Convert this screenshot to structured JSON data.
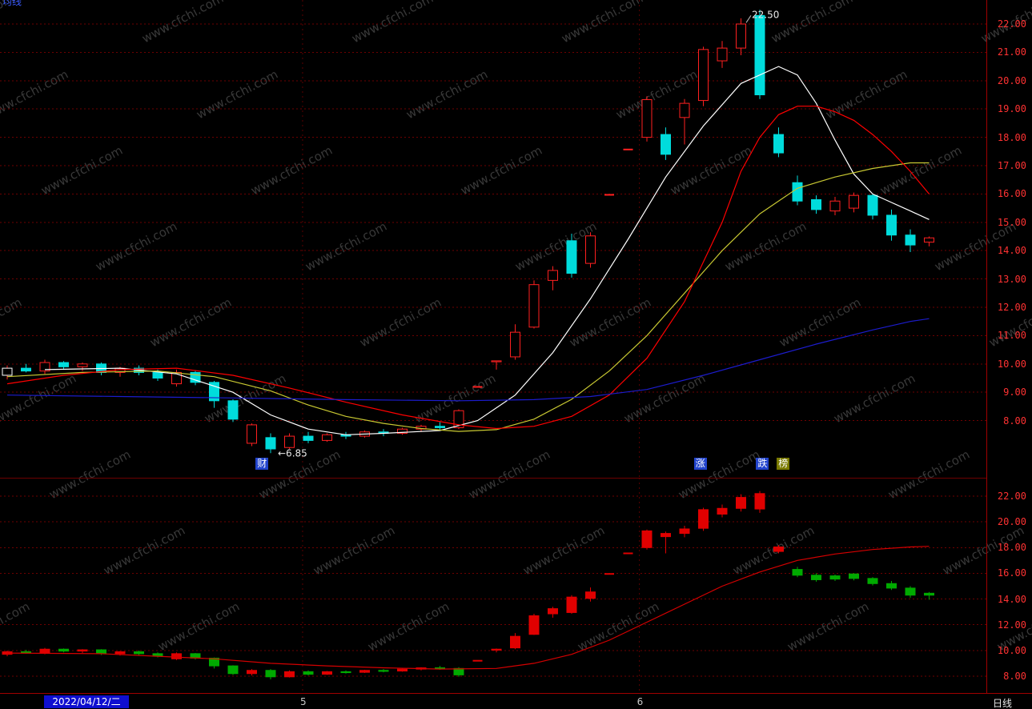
{
  "corner_text": "均线",
  "watermark": {
    "text": "www.cfchi.com"
  },
  "statusbar": {
    "date": "2022/04/12/二",
    "period": "日线"
  },
  "months": [
    {
      "label": "5",
      "bar": 15.7
    },
    {
      "label": "6",
      "bar": 33.6
    }
  ],
  "badges": [
    {
      "label": "财",
      "bar": 13.5,
      "bg": "#2244cc"
    },
    {
      "label": "涨",
      "bar": 36.8,
      "bg": "#2244cc"
    },
    {
      "label": "跌",
      "bar": 40.1,
      "bg": "#2244cc"
    },
    {
      "label": "榜",
      "bar": 41.2,
      "bg": "#7a7a00"
    }
  ],
  "chart_data": [
    {
      "name": "daily-kline-main",
      "type": "candlestick",
      "period": "daily",
      "y_ticks": [
        22,
        21,
        20,
        19,
        18,
        17,
        16,
        15,
        14,
        13,
        12,
        11,
        10,
        9,
        8
      ],
      "ylim": [
        6.5,
        22.85
      ],
      "grid": true,
      "colors": {
        "up": "#ff2020",
        "down": "#00dcdc",
        "up_fill": "hollow"
      },
      "selected_bar": 0,
      "candles": [
        [
          9.6,
          9.95,
          9.45,
          9.85
        ],
        [
          9.85,
          10.0,
          9.7,
          9.75
        ],
        [
          9.75,
          10.15,
          9.65,
          10.05
        ],
        [
          10.05,
          10.1,
          9.8,
          9.9
        ],
        [
          9.9,
          10.05,
          9.75,
          10.0
        ],
        [
          10.0,
          10.05,
          9.6,
          9.7
        ],
        [
          9.7,
          9.9,
          9.55,
          9.85
        ],
        [
          9.85,
          9.95,
          9.6,
          9.7
        ],
        [
          9.7,
          9.8,
          9.4,
          9.5
        ],
        [
          9.3,
          9.8,
          9.2,
          9.7
        ],
        [
          9.7,
          9.75,
          9.25,
          9.35
        ],
        [
          9.35,
          9.4,
          8.45,
          8.7
        ],
        [
          8.7,
          8.75,
          7.95,
          8.05
        ],
        [
          7.2,
          7.9,
          7.1,
          7.85
        ],
        [
          7.4,
          7.55,
          6.85,
          7.0
        ],
        [
          7.05,
          7.55,
          7.0,
          7.45
        ],
        [
          7.45,
          7.6,
          7.2,
          7.3
        ],
        [
          7.3,
          7.55,
          7.25,
          7.5
        ],
        [
          7.5,
          7.6,
          7.35,
          7.45
        ],
        [
          7.45,
          7.65,
          7.4,
          7.6
        ],
        [
          7.6,
          7.7,
          7.45,
          7.55
        ],
        [
          7.55,
          7.75,
          7.5,
          7.7
        ],
        [
          7.7,
          7.85,
          7.6,
          7.8
        ],
        [
          7.8,
          7.95,
          7.65,
          7.75
        ],
        [
          7.75,
          8.4,
          7.7,
          8.35
        ],
        [
          9.19,
          9.19,
          9.19,
          9.19
        ],
        [
          10.11,
          10.11,
          9.8,
          10.11
        ],
        [
          10.25,
          11.4,
          10.15,
          11.12
        ],
        [
          11.3,
          12.95,
          11.25,
          12.8
        ],
        [
          12.95,
          13.45,
          12.6,
          13.3
        ],
        [
          14.35,
          14.6,
          13.05,
          13.2
        ],
        [
          13.55,
          14.65,
          13.4,
          14.52
        ],
        [
          15.97,
          15.97,
          15.97,
          15.97
        ],
        [
          17.57,
          17.57,
          17.57,
          17.57
        ],
        [
          18.0,
          19.45,
          17.85,
          19.33
        ],
        [
          18.1,
          18.35,
          17.2,
          17.4
        ],
        [
          18.7,
          19.35,
          17.75,
          19.2
        ],
        [
          19.3,
          21.2,
          19.1,
          21.1
        ],
        [
          20.7,
          21.4,
          20.45,
          21.15
        ],
        [
          21.15,
          22.2,
          20.9,
          22.0
        ],
        [
          22.3,
          22.5,
          19.35,
          19.5
        ],
        [
          18.1,
          18.35,
          17.3,
          17.45
        ],
        [
          16.4,
          16.65,
          15.6,
          15.75
        ],
        [
          15.8,
          15.95,
          15.3,
          15.45
        ],
        [
          15.4,
          15.9,
          15.25,
          15.75
        ],
        [
          15.5,
          16.05,
          15.35,
          15.95
        ],
        [
          15.95,
          16.0,
          15.1,
          15.25
        ],
        [
          15.25,
          15.45,
          14.35,
          14.55
        ],
        [
          14.55,
          14.75,
          13.95,
          14.2
        ],
        [
          14.3,
          14.5,
          14.15,
          14.45
        ]
      ],
      "ma_lines": [
        {
          "name": "ma-short-white",
          "color": "#ffffff",
          "points": [
            [
              2,
              9.8
            ],
            [
              6,
              9.85
            ],
            [
              9,
              9.65
            ],
            [
              12,
              9.0
            ],
            [
              14,
              8.2
            ],
            [
              16,
              7.7
            ],
            [
              18,
              7.5
            ],
            [
              20,
              7.55
            ],
            [
              23,
              7.65
            ],
            [
              25,
              8.0
            ],
            [
              27,
              8.9
            ],
            [
              29,
              10.4
            ],
            [
              31,
              12.3
            ],
            [
              33,
              14.4
            ],
            [
              35,
              16.6
            ],
            [
              37,
              18.4
            ],
            [
              39,
              19.9
            ],
            [
              41,
              20.5
            ],
            [
              42,
              20.2
            ],
            [
              43,
              19.2
            ],
            [
              44,
              17.9
            ],
            [
              45,
              16.7
            ],
            [
              46,
              16.0
            ],
            [
              47,
              15.7
            ],
            [
              48,
              15.4
            ],
            [
              49,
              15.1
            ]
          ]
        },
        {
          "name": "ma-mid-yellow",
          "color": "#c8c832",
          "points": [
            [
              0,
              9.55
            ],
            [
              4,
              9.7
            ],
            [
              8,
              9.75
            ],
            [
              11,
              9.55
            ],
            [
              14,
              9.05
            ],
            [
              16,
              8.55
            ],
            [
              18,
              8.15
            ],
            [
              20,
              7.9
            ],
            [
              22,
              7.72
            ],
            [
              24,
              7.62
            ],
            [
              26,
              7.68
            ],
            [
              28,
              8.05
            ],
            [
              30,
              8.75
            ],
            [
              32,
              9.75
            ],
            [
              34,
              11.0
            ],
            [
              36,
              12.5
            ],
            [
              38,
              14.0
            ],
            [
              40,
              15.3
            ],
            [
              42,
              16.2
            ],
            [
              44,
              16.6
            ],
            [
              46,
              16.9
            ],
            [
              48,
              17.1
            ],
            [
              49,
              17.1
            ]
          ]
        },
        {
          "name": "ma-long-red",
          "color": "#ff0000",
          "points": [
            [
              0,
              9.3
            ],
            [
              3,
              9.6
            ],
            [
              6,
              9.8
            ],
            [
              9,
              9.85
            ],
            [
              12,
              9.6
            ],
            [
              15,
              9.15
            ],
            [
              18,
              8.65
            ],
            [
              21,
              8.2
            ],
            [
              24,
              7.85
            ],
            [
              26,
              7.72
            ],
            [
              28,
              7.8
            ],
            [
              30,
              8.15
            ],
            [
              32,
              8.9
            ],
            [
              34,
              10.2
            ],
            [
              36,
              12.2
            ],
            [
              38,
              15.0
            ],
            [
              39,
              16.8
            ],
            [
              40,
              18.0
            ],
            [
              41,
              18.8
            ],
            [
              42,
              19.1
            ],
            [
              43,
              19.1
            ],
            [
              44,
              18.9
            ],
            [
              45,
              18.6
            ],
            [
              46,
              18.1
            ],
            [
              47,
              17.5
            ],
            [
              48,
              16.8
            ],
            [
              49,
              16.0
            ]
          ]
        },
        {
          "name": "ma-slow-blue",
          "color": "#1c1ccc",
          "points": [
            [
              0,
              8.9
            ],
            [
              6,
              8.85
            ],
            [
              12,
              8.8
            ],
            [
              18,
              8.74
            ],
            [
              24,
              8.7
            ],
            [
              28,
              8.74
            ],
            [
              31,
              8.85
            ],
            [
              34,
              9.1
            ],
            [
              37,
              9.6
            ],
            [
              40,
              10.15
            ],
            [
              43,
              10.7
            ],
            [
              46,
              11.2
            ],
            [
              48,
              11.5
            ],
            [
              49,
              11.6
            ]
          ]
        }
      ],
      "annotations": [
        {
          "bar": 40,
          "price": 22.5,
          "text": "22.50",
          "placement": "above"
        },
        {
          "bar": 14,
          "price": 6.85,
          "text": "←6.85",
          "placement": "right"
        }
      ]
    },
    {
      "name": "daily-kline-secondary",
      "type": "candlestick",
      "period": "daily",
      "y_ticks": [
        22,
        20,
        18,
        16,
        14,
        12,
        10,
        8
      ],
      "ylim": [
        7.0,
        23.0
      ],
      "grid": true,
      "colors": {
        "up": "#e00000",
        "down": "#00aa00",
        "up_fill": "solid"
      },
      "candles": [
        [
          9.7,
          10.0,
          9.55,
          9.9
        ],
        [
          9.9,
          10.05,
          9.75,
          9.8
        ],
        [
          9.8,
          10.2,
          9.7,
          10.1
        ],
        [
          10.1,
          10.15,
          9.85,
          9.95
        ],
        [
          9.95,
          10.1,
          9.8,
          10.05
        ],
        [
          10.05,
          10.1,
          9.65,
          9.75
        ],
        [
          9.75,
          9.95,
          9.6,
          9.9
        ],
        [
          9.9,
          10.0,
          9.65,
          9.75
        ],
        [
          9.75,
          9.85,
          9.45,
          9.55
        ],
        [
          9.35,
          9.85,
          9.25,
          9.75
        ],
        [
          9.75,
          9.8,
          9.3,
          9.4
        ],
        [
          9.4,
          9.45,
          8.6,
          8.8
        ],
        [
          8.8,
          8.85,
          8.1,
          8.2
        ],
        [
          8.2,
          8.55,
          8.05,
          8.45
        ],
        [
          8.45,
          8.55,
          7.75,
          7.95
        ],
        [
          7.95,
          8.45,
          7.9,
          8.35
        ],
        [
          8.35,
          8.45,
          8.05,
          8.15
        ],
        [
          8.15,
          8.4,
          8.1,
          8.35
        ],
        [
          8.35,
          8.45,
          8.2,
          8.3
        ],
        [
          8.3,
          8.5,
          8.25,
          8.45
        ],
        [
          8.45,
          8.55,
          8.3,
          8.4
        ],
        [
          8.4,
          8.6,
          8.35,
          8.55
        ],
        [
          8.55,
          8.7,
          8.45,
          8.65
        ],
        [
          8.65,
          8.8,
          8.5,
          8.6
        ],
        [
          8.6,
          8.7,
          7.95,
          8.1
        ],
        [
          9.2,
          9.2,
          9.2,
          9.2
        ],
        [
          10.1,
          10.15,
          9.85,
          10.1
        ],
        [
          10.2,
          11.35,
          10.1,
          11.1
        ],
        [
          11.25,
          12.85,
          11.2,
          12.7
        ],
        [
          12.85,
          13.4,
          12.55,
          13.25
        ],
        [
          12.95,
          14.3,
          12.85,
          14.15
        ],
        [
          14.05,
          14.9,
          13.8,
          14.55
        ],
        [
          15.95,
          15.95,
          15.95,
          15.95
        ],
        [
          17.55,
          17.55,
          17.55,
          17.55
        ],
        [
          18.0,
          19.4,
          17.85,
          19.3
        ],
        [
          18.85,
          19.25,
          17.55,
          19.1
        ],
        [
          19.1,
          19.7,
          18.8,
          19.45
        ],
        [
          19.5,
          21.1,
          19.3,
          20.95
        ],
        [
          20.6,
          21.35,
          20.35,
          21.05
        ],
        [
          21.05,
          22.15,
          20.8,
          21.9
        ],
        [
          21.0,
          22.4,
          20.7,
          22.2
        ],
        [
          17.7,
          18.2,
          17.55,
          18.05
        ],
        [
          16.3,
          16.5,
          15.7,
          15.85
        ],
        [
          15.85,
          16.0,
          15.35,
          15.5
        ],
        [
          15.8,
          15.9,
          15.4,
          15.55
        ],
        [
          15.95,
          16.0,
          15.45,
          15.6
        ],
        [
          15.6,
          15.7,
          15.05,
          15.2
        ],
        [
          15.2,
          15.4,
          14.7,
          14.85
        ],
        [
          14.85,
          15.0,
          14.1,
          14.3
        ],
        [
          14.45,
          14.55,
          13.95,
          14.3
        ]
      ],
      "ma_lines": [
        {
          "name": "ma-red",
          "color": "#d40000",
          "points": [
            [
              0,
              9.8
            ],
            [
              5,
              9.75
            ],
            [
              8,
              9.55
            ],
            [
              11,
              9.35
            ],
            [
              14,
              9.0
            ],
            [
              17,
              8.8
            ],
            [
              20,
              8.65
            ],
            [
              23,
              8.55
            ],
            [
              26,
              8.6
            ],
            [
              28,
              9.0
            ],
            [
              30,
              9.7
            ],
            [
              32,
              10.8
            ],
            [
              34,
              12.2
            ],
            [
              36,
              13.6
            ],
            [
              38,
              15.0
            ],
            [
              40,
              16.1
            ],
            [
              42,
              17.0
            ],
            [
              44,
              17.5
            ],
            [
              46,
              17.85
            ],
            [
              48,
              18.05
            ],
            [
              49,
              18.1
            ]
          ]
        }
      ],
      "annotations": []
    }
  ]
}
